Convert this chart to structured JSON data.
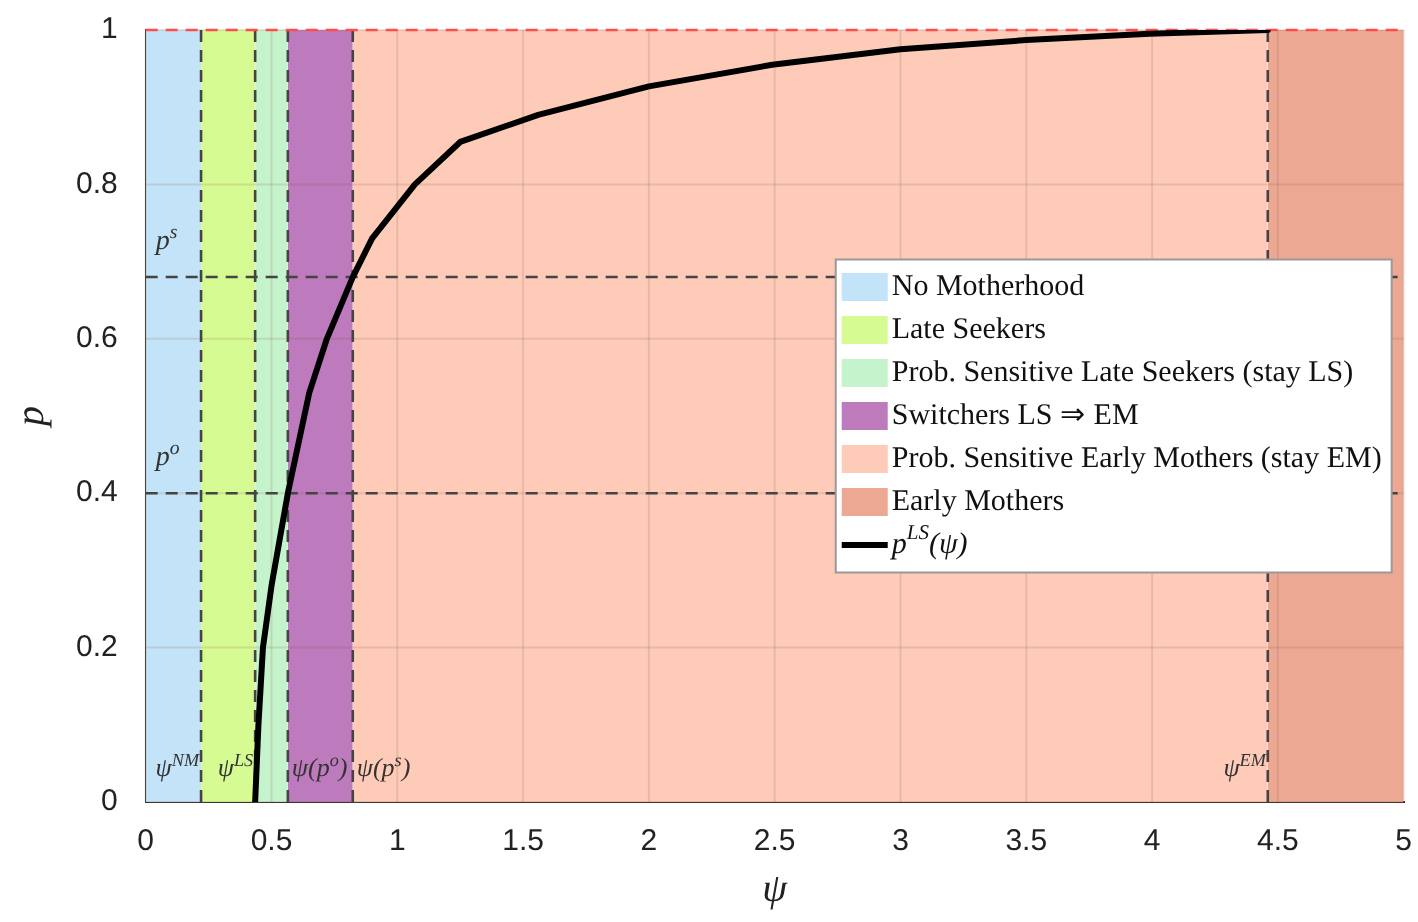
{
  "chart_data": {
    "type": "line",
    "xlabel": "ψ",
    "ylabel": "p",
    "xlim": [
      0,
      5
    ],
    "xticks": [
      0,
      0.5,
      1,
      1.5,
      2,
      2.5,
      3,
      3.5,
      4,
      4.5,
      5
    ],
    "ylim": [
      0,
      1
    ],
    "yticks": [
      0,
      0.2,
      0.4,
      0.6,
      0.8,
      1
    ],
    "grid": true,
    "legend": "right",
    "line_style": "solid",
    "marker": "none",
    "ref_lines": [
      {
        "axis": "x",
        "value": 0.22,
        "label": "ψ$^{NM}$",
        "color": "#444444",
        "line_style": "dashed"
      },
      {
        "axis": "x",
        "value": 0.435,
        "label": "ψ$^{LS}$",
        "color": "#444444",
        "line_style": "dashed"
      },
      {
        "axis": "x",
        "value": 0.565,
        "label": "ψ(p$^{o}$)",
        "color": "#444444",
        "line_style": "dashed"
      },
      {
        "axis": "x",
        "value": 0.823,
        "label": "ψ(p$^{s}$)",
        "color": "#444444",
        "line_style": "dashed"
      },
      {
        "axis": "x",
        "value": 4.46,
        "label": "ψ$^{EM}$",
        "color": "#444444",
        "line_style": "dashed"
      },
      {
        "axis": "y",
        "value": 0.68,
        "label": "p$^{s}$",
        "color": "#444444",
        "line_style": "dashed"
      },
      {
        "axis": "y",
        "value": 0.4,
        "label": "p$^{o}$",
        "color": "#444444",
        "line_style": "dashed"
      },
      {
        "axis": "y",
        "value": 1,
        "color": "#ff4d4d",
        "line_style": "dashed"
      }
    ],
    "series": [
      {
        "name": "No Motherhood",
        "type": "area",
        "color": "#c2e3f8",
        "x": [
          0,
          0.22
        ],
        "values": [
          1,
          1
        ]
      },
      {
        "name": "Late Seekers",
        "type": "area",
        "color": "#d6fb92",
        "x": [
          0.22,
          0.435
        ],
        "values": [
          1,
          1
        ]
      },
      {
        "name": "Prob. Sensitive Late Seekers (stay LS)",
        "type": "area",
        "color": "#c5f3cb",
        "x": [
          0.435,
          0.565
        ],
        "values": [
          1,
          1
        ]
      },
      {
        "name": "Switchers LS ⇒ EM",
        "type": "area",
        "color": "#bd7abd",
        "x": [
          0.565,
          0.823
        ],
        "values": [
          1,
          1
        ]
      },
      {
        "name": "Prob. Sensitive Early Mothers (stay EM)",
        "type": "area",
        "color": "#fdcbb8",
        "x": [
          0.823,
          4.46
        ],
        "values": [
          1,
          1
        ]
      },
      {
        "name": "Early Mothers",
        "type": "area",
        "color": "#eca892",
        "x": [
          4.46,
          5
        ],
        "values": [
          1,
          1
        ]
      },
      {
        "name": "p$^{LS}$(ψ)",
        "color": "#000000",
        "x": [
          0.435,
          0.448,
          0.466,
          0.5,
          0.565,
          0.65,
          0.72,
          0.823,
          0.9,
          1.07,
          1.25,
          1.56,
          2.0,
          2.49,
          3.0,
          3.5,
          3.99,
          4.46
        ],
        "values": [
          0,
          0.1,
          0.2,
          0.28,
          0.4,
          0.53,
          0.6,
          0.68,
          0.73,
          0.8,
          0.855,
          0.89,
          0.927,
          0.955,
          0.975,
          0.987,
          0.995,
          1
        ]
      }
    ]
  }
}
